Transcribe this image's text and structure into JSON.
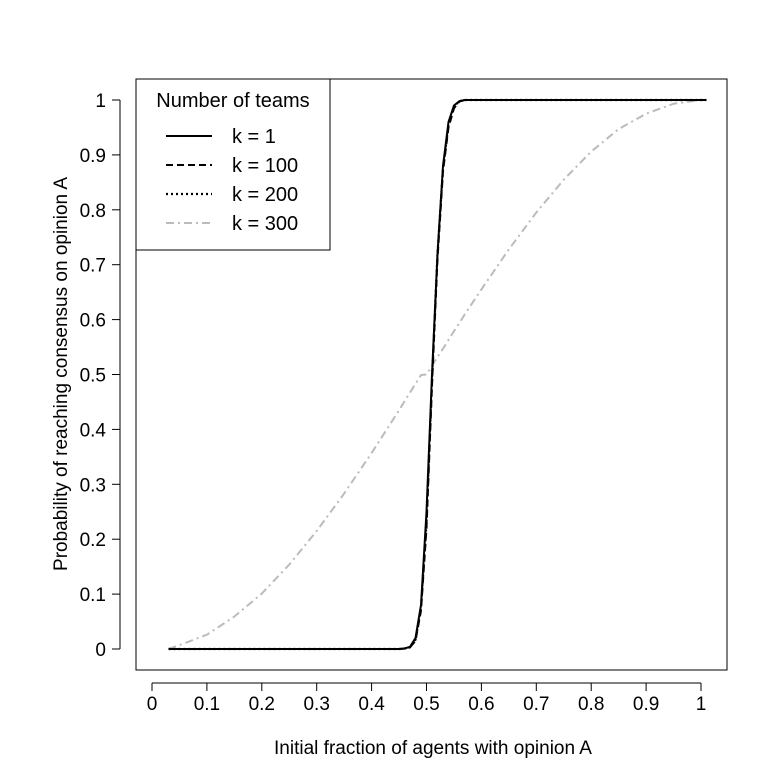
{
  "chart_data": {
    "type": "line",
    "title": "",
    "xlabel": "Initial fraction of agents with opinion A",
    "ylabel": "Probability of reaching consensus on opinion A",
    "xlim": [
      0,
      1
    ],
    "ylim": [
      0,
      1
    ],
    "x_ticks": [
      "0",
      "0.1",
      "0.2",
      "0.3",
      "0.4",
      "0.5",
      "0.6",
      "0.7",
      "0.8",
      "0.9",
      "1"
    ],
    "y_ticks": [
      "0",
      "0.1",
      "0.2",
      "0.3",
      "0.4",
      "0.5",
      "0.6",
      "0.7",
      "0.8",
      "0.9",
      "1"
    ],
    "grid": false,
    "legend": {
      "title": "Number of teams",
      "position": "top-left"
    },
    "x": [
      0.03,
      0.05,
      0.1,
      0.15,
      0.2,
      0.25,
      0.3,
      0.35,
      0.4,
      0.45,
      0.46,
      0.47,
      0.48,
      0.49,
      0.5,
      0.51,
      0.52,
      0.53,
      0.54,
      0.55,
      0.56,
      0.57,
      0.58,
      0.6,
      0.65,
      0.7,
      0.75,
      0.8,
      0.85,
      0.9,
      0.95,
      1.0,
      1.01
    ],
    "series": [
      {
        "name": "k = 1",
        "style": "solid",
        "color": "#000000",
        "values": [
          0,
          0,
          0,
          0,
          0,
          0,
          0,
          0,
          0,
          0,
          0.001,
          0.004,
          0.02,
          0.08,
          0.25,
          0.5,
          0.72,
          0.88,
          0.96,
          0.99,
          0.998,
          1,
          1,
          1,
          1,
          1,
          1,
          1,
          1,
          1,
          1,
          1,
          1
        ]
      },
      {
        "name": "k = 100",
        "style": "dashed",
        "color": "#000000",
        "values": [
          0,
          0,
          0,
          0,
          0,
          0,
          0,
          0,
          0,
          0,
          0.001,
          0.003,
          0.015,
          0.07,
          0.22,
          0.48,
          0.71,
          0.87,
          0.95,
          0.985,
          0.997,
          1,
          1,
          1,
          1,
          1,
          1,
          1,
          1,
          1,
          1,
          1,
          1
        ]
      },
      {
        "name": "k = 200",
        "style": "dotted",
        "color": "#000000",
        "values": [
          0,
          0,
          0,
          0,
          0,
          0,
          0,
          0,
          0,
          0,
          0.001,
          0.003,
          0.017,
          0.075,
          0.23,
          0.49,
          0.72,
          0.875,
          0.955,
          0.988,
          0.998,
          1,
          1,
          1,
          1,
          1,
          1,
          1,
          1,
          1,
          1,
          1,
          1
        ]
      },
      {
        "name": "k = 300",
        "style": "dashdot",
        "color": "#bbbbbb",
        "values": [
          0,
          0.007,
          0.026,
          0.059,
          0.101,
          0.154,
          0.215,
          0.283,
          0.357,
          0.435,
          0.451,
          0.467,
          0.483,
          0.499,
          0.5,
          0.516,
          0.532,
          0.547,
          0.563,
          0.579,
          0.594,
          0.61,
          0.625,
          0.655,
          0.728,
          0.795,
          0.855,
          0.906,
          0.947,
          0.975,
          0.993,
          1,
          1
        ]
      }
    ]
  }
}
